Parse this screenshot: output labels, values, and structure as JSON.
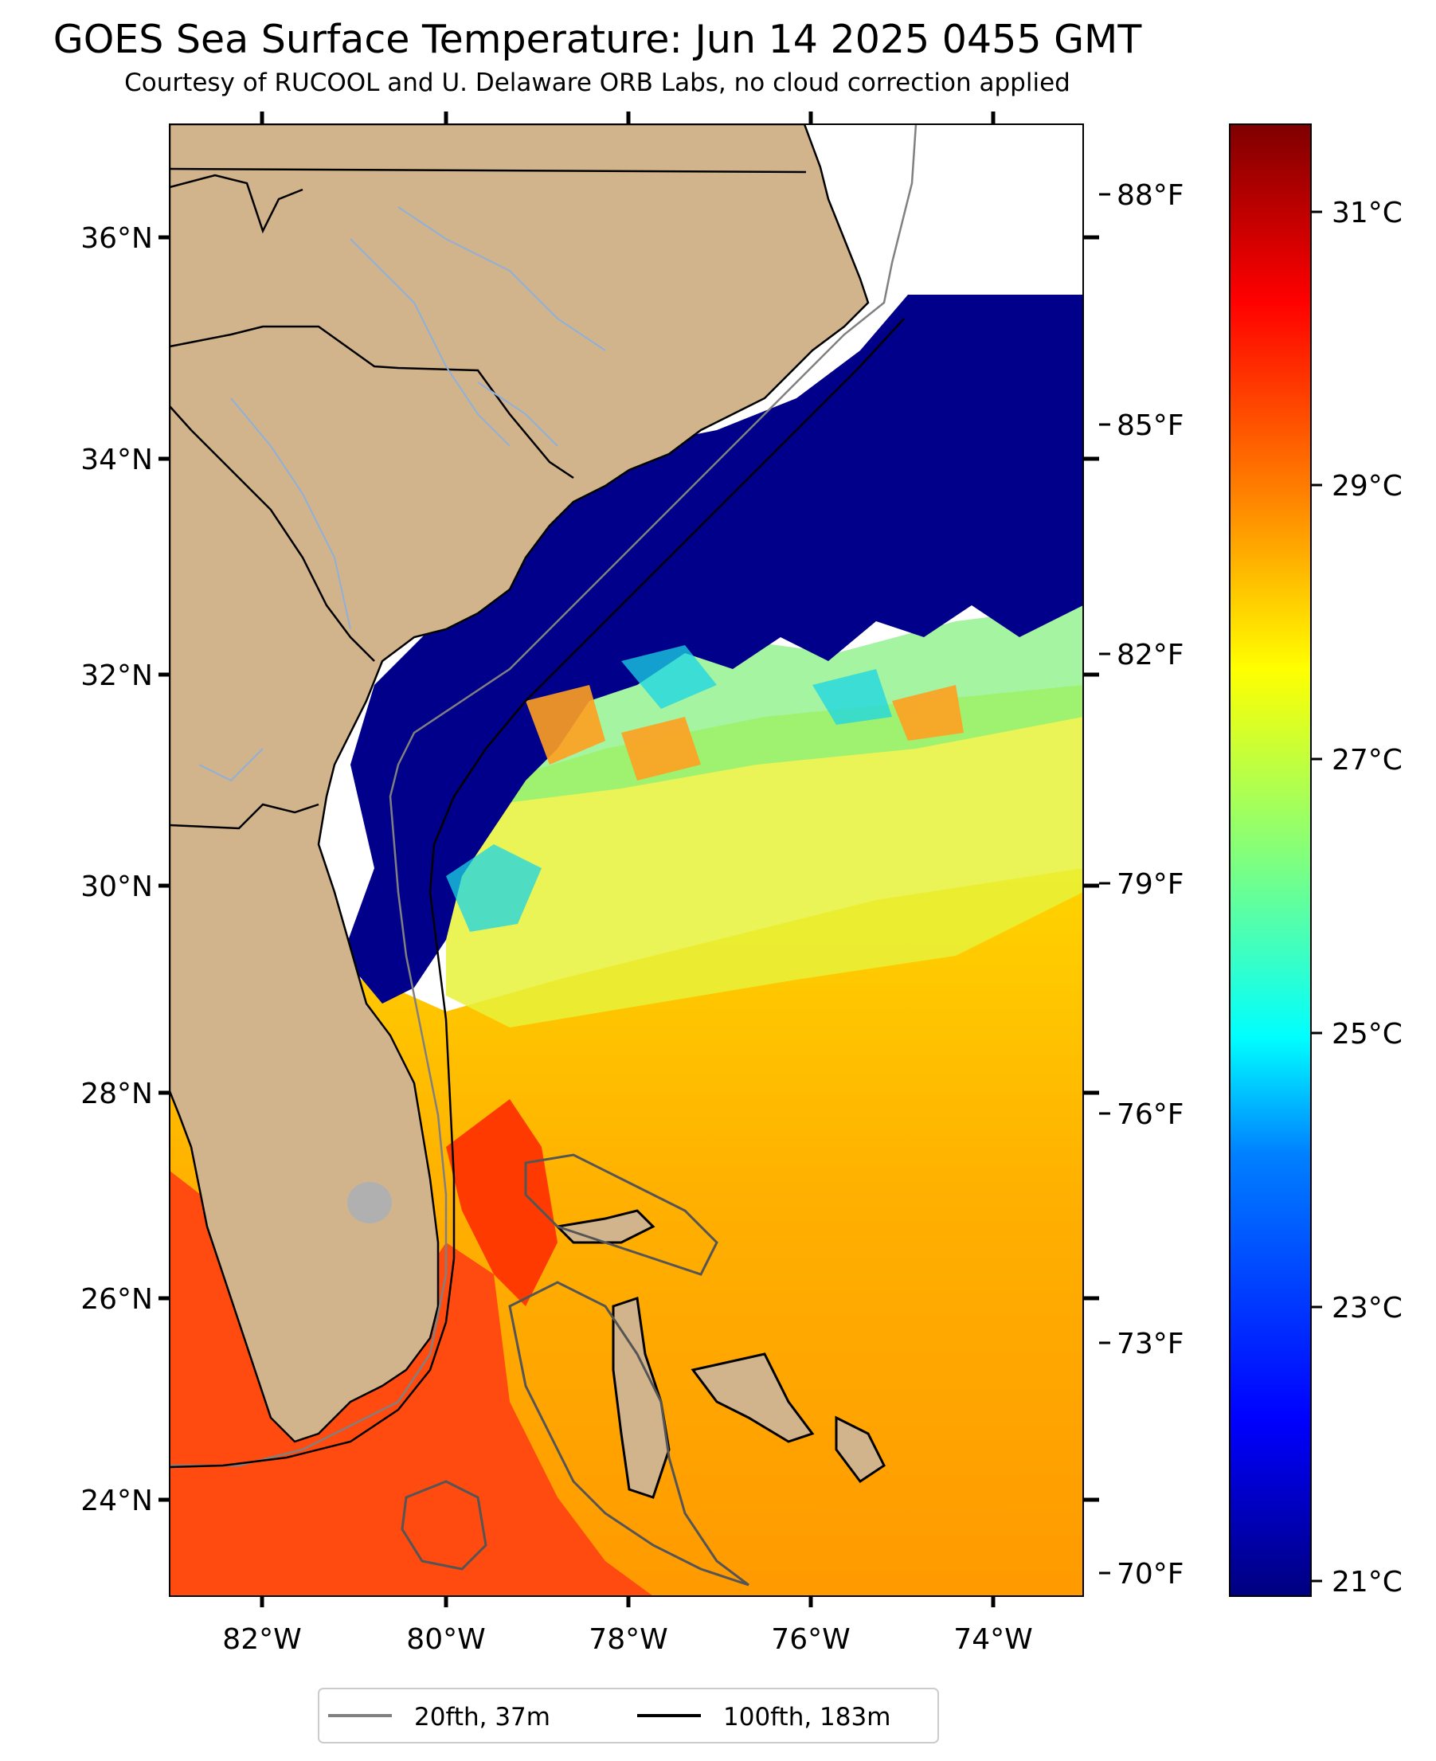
{
  "title": "GOES Sea Surface Temperature: Jun 14 2025 0455 GMT",
  "subtitle": "Courtesy of RUCOOL and U. Delaware ORB Labs, no cloud correction applied",
  "axes": {
    "lat_ticks": [
      "36°N",
      "34°N",
      "32°N",
      "30°N",
      "28°N",
      "26°N",
      "24°N"
    ],
    "lon_ticks": [
      "82°W",
      "80°W",
      "78°W",
      "76°W",
      "74°W"
    ]
  },
  "colorbar": {
    "celsius_ticks": [
      "31°C",
      "29°C",
      "27°C",
      "25°C",
      "23°C",
      "21°C"
    ],
    "fahrenheit_ticks": [
      "88°F",
      "85°F",
      "82°F",
      "79°F",
      "76°F",
      "73°F",
      "70°F"
    ],
    "gradient": [
      "#00007f",
      "#0000ff",
      "#0080ff",
      "#00ffff",
      "#7fff7f",
      "#ffff00",
      "#ff8000",
      "#ff0000",
      "#7f0000"
    ]
  },
  "legend": [
    {
      "label": "20fth, 37m",
      "color": "#808080"
    },
    {
      "label": "100fth, 183m",
      "color": "#000000"
    }
  ],
  "map_colors": {
    "land": "#d2b48c",
    "cloud_cold": "#000080",
    "warm": "#ffa500",
    "hot": "#ff3300",
    "lake": "#b0b0b0",
    "river": "#8fb0d8"
  }
}
